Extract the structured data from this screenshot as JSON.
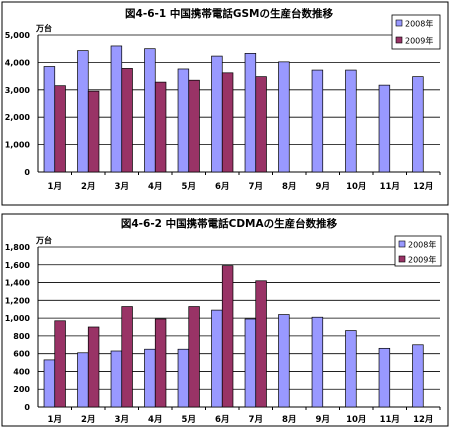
{
  "colors": {
    "series2008": "#9999ff",
    "series2009": "#993366",
    "grid": "#000000",
    "frame": "#000000"
  },
  "chart_data": [
    {
      "type": "bar",
      "title": "図4-6-1  中国携帯電話GSMの生産台数推移",
      "unit_label": "万台",
      "categories": [
        "1月",
        "2月",
        "3月",
        "4月",
        "5月",
        "6月",
        "7月",
        "8月",
        "9月",
        "10月",
        "11月",
        "12月"
      ],
      "ylim": [
        0,
        5000
      ],
      "yticks": [
        0,
        1000,
        2000,
        3000,
        4000,
        5000
      ],
      "ytick_labels": [
        "0",
        "1,000",
        "2,000",
        "3,000",
        "4,000",
        "5,000"
      ],
      "grid": true,
      "legend_position": "top-right",
      "series": [
        {
          "name": "2008年",
          "values": [
            3850,
            4430,
            4600,
            4500,
            3760,
            4230,
            4330,
            4020,
            3720,
            3720,
            3170,
            3480
          ]
        },
        {
          "name": "2009年",
          "values": [
            3150,
            2950,
            3780,
            3280,
            3350,
            3620,
            3480,
            null,
            null,
            null,
            null,
            null
          ]
        }
      ]
    },
    {
      "type": "bar",
      "title": "図4-6-2  中国携帯電話CDMAの生産台数推移",
      "unit_label": "万台",
      "categories": [
        "1月",
        "2月",
        "3月",
        "4月",
        "5月",
        "6月",
        "7月",
        "8月",
        "9月",
        "10月",
        "11月",
        "12月"
      ],
      "ylim": [
        0,
        1800
      ],
      "yticks": [
        0,
        200,
        400,
        600,
        800,
        1000,
        1200,
        1400,
        1600,
        1800
      ],
      "ytick_labels": [
        "0",
        "200",
        "400",
        "600",
        "800",
        "1,000",
        "1,200",
        "1,400",
        "1,600",
        "1,800"
      ],
      "grid": true,
      "legend_position": "top-right",
      "series": [
        {
          "name": "2008年",
          "values": [
            530,
            610,
            630,
            650,
            650,
            1090,
            990,
            1040,
            1010,
            860,
            660,
            700
          ]
        },
        {
          "name": "2009年",
          "values": [
            970,
            900,
            1130,
            990,
            1130,
            1590,
            1420,
            null,
            null,
            null,
            null,
            null
          ]
        }
      ]
    }
  ]
}
